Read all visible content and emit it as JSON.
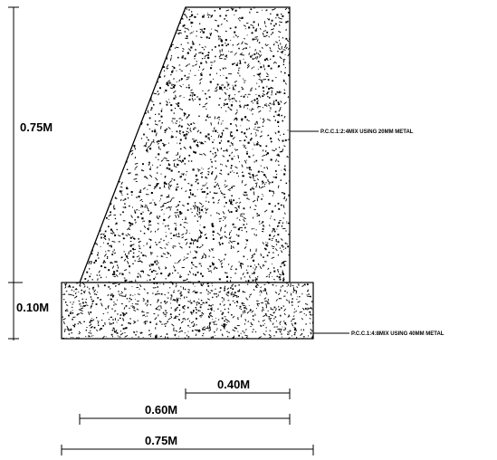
{
  "dimensions": {
    "stem_height": "0.75M",
    "base_height": "0.10M",
    "top_width": "0.40M",
    "mid_width": "0.60M",
    "base_width": "0.75M"
  },
  "annotations": {
    "stem_note": "P.C.C.1:2:4MIX USING 20MM METAL",
    "base_note": "P.C.C.1:4:8MIX USING 40MM METAL"
  },
  "colors": {
    "line": "#000000",
    "background": "#ffffff"
  }
}
